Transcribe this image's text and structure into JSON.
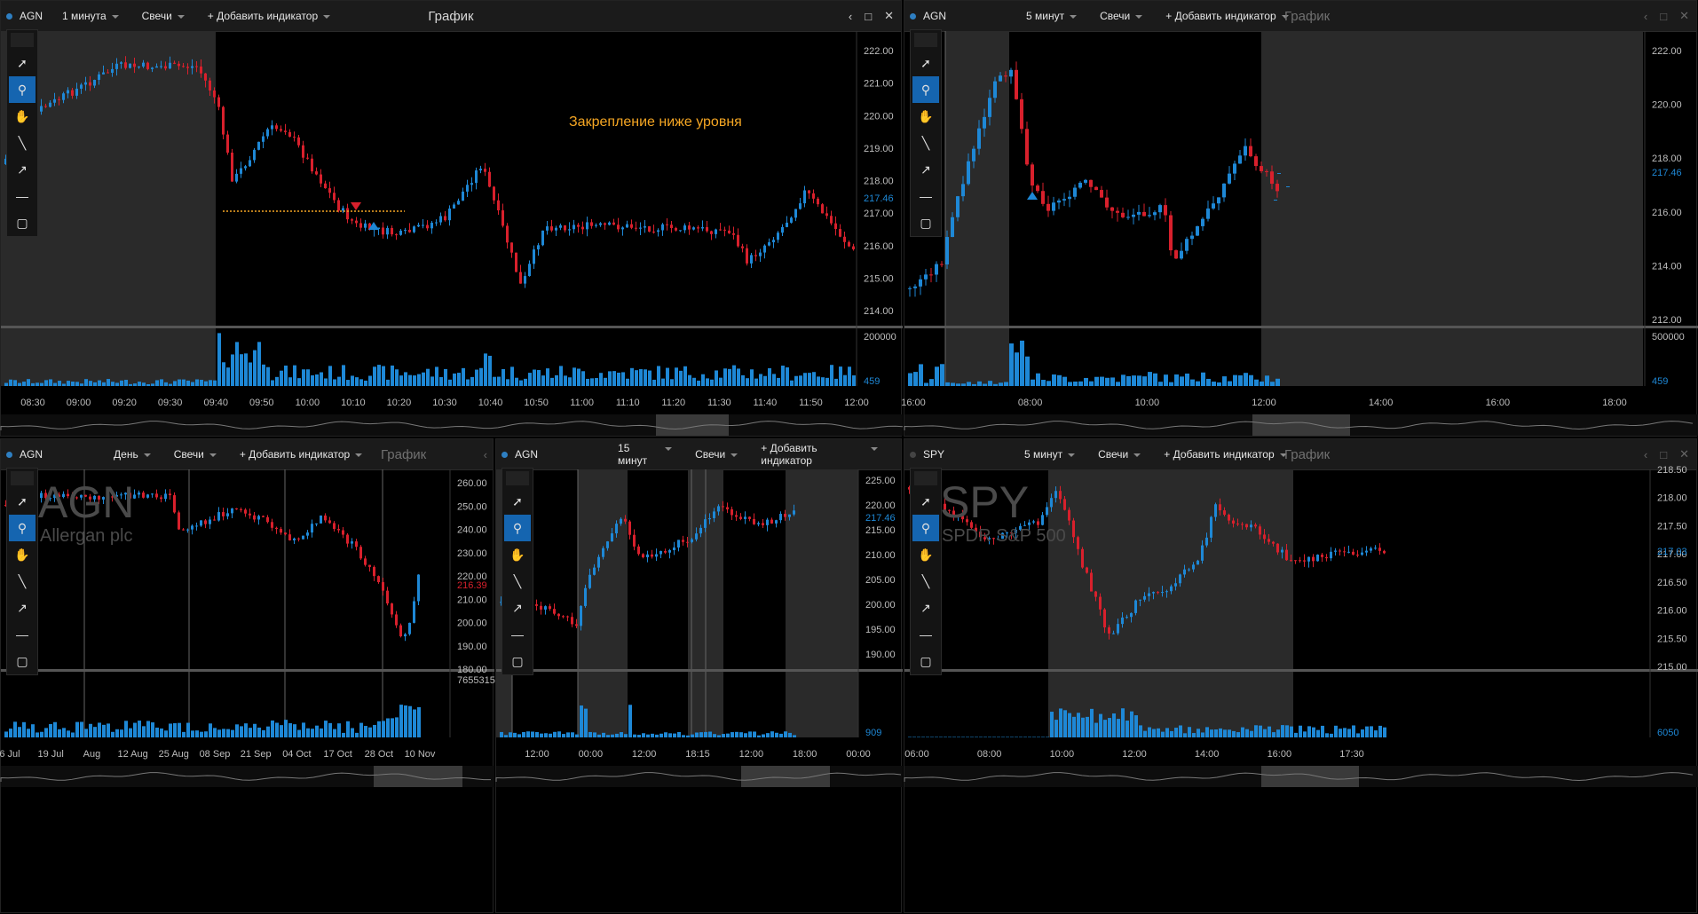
{
  "panels": [
    {
      "id": "p1",
      "symbol": "AGN",
      "interval": "1 минута",
      "chart_type": "Свечи",
      "add_indicator": "+ Добавить индикатор",
      "title": "График",
      "title_dim": false,
      "price_ticks": [
        "222.00",
        "221.00",
        "220.00",
        "219.00",
        "218.00",
        "217.00",
        "216.00",
        "215.00",
        "214.00"
      ],
      "current_price": "217.46",
      "vol_max": "200000",
      "vol_min": "459",
      "time_ticks": [
        "08:30",
        "09:00",
        "09:20",
        "09:30",
        "09:40",
        "09:50",
        "10:00",
        "10:10",
        "10:20",
        "10:30",
        "10:40",
        "10:50",
        "11:00",
        "11:10",
        "11:20",
        "11:30",
        "11:40",
        "11:50",
        "12:00"
      ],
      "annotation": "Закрепление ниже уровня"
    },
    {
      "id": "p2",
      "symbol": "AGN",
      "interval": "5 минут",
      "chart_type": "Свечи",
      "add_indicator": "+ Добавить индикатор",
      "title": "График",
      "title_dim": true,
      "price_ticks": [
        "222.00",
        "220.00",
        "218.00",
        "216.00",
        "214.00",
        "212.00"
      ],
      "current_price": "217.46",
      "vol_max": "500000",
      "vol_min": "459",
      "time_ticks": [
        "16:00",
        "08:00",
        "10:00",
        "12:00",
        "14:00",
        "16:00",
        "18:00"
      ]
    },
    {
      "id": "p3",
      "symbol": "AGN",
      "interval": "День",
      "chart_type": "Свечи",
      "add_indicator": "+ Добавить индикатор",
      "title": "График",
      "title_dim": true,
      "price_ticks": [
        "260.00",
        "250.00",
        "240.00",
        "230.00",
        "220.00",
        "210.00",
        "200.00",
        "190.00",
        "180.00"
      ],
      "current_price": "216.39",
      "vol_max": "7655315",
      "vol_min": "",
      "time_ticks": [
        "6 Jul",
        "19 Jul",
        "Aug",
        "12 Aug",
        "25 Aug",
        "08 Sep",
        "21 Sep",
        "04 Oct",
        "17 Oct",
        "28 Oct",
        "10 Nov"
      ],
      "watermark_symbol": "AGN",
      "watermark_name": "Allergan plc"
    },
    {
      "id": "p4",
      "symbol": "AGN",
      "interval": "15 минут",
      "chart_type": "Свечи",
      "add_indicator": "+ Добавить индикатор",
      "title": "",
      "title_dim": true,
      "price_ticks": [
        "225.00",
        "220.00",
        "215.00",
        "210.00",
        "205.00",
        "200.00",
        "195.00",
        "190.00"
      ],
      "current_price": "217.46",
      "vol_max": "",
      "vol_min": "909",
      "time_ticks": [
        "12:00",
        "00:00",
        "12:00",
        "18:15",
        "12:00",
        "18:00",
        "00:00"
      ]
    },
    {
      "id": "p5",
      "symbol": "SPY",
      "interval": "5 минут",
      "chart_type": "Свечи",
      "add_indicator": "+ Добавить индикатор",
      "title": "График",
      "title_dim": true,
      "price_ticks": [
        "218.50",
        "218.00",
        "217.50",
        "217.00",
        "216.50",
        "216.00",
        "215.50",
        "215.00"
      ],
      "current_price": "217.03",
      "vol_max": "",
      "vol_min": "6050",
      "time_ticks": [
        "06:00",
        "08:00",
        "10:00",
        "12:00",
        "14:00",
        "16:00",
        "17:30"
      ],
      "watermark_symbol": "SPY",
      "watermark_name": "SPDR S&P 500"
    }
  ],
  "colors": {
    "up": "#1e88d6",
    "down": "#d8202c",
    "accent": "#1565b0",
    "annotation": "#f5a623",
    "grid": "#0a0a0a",
    "session_shade": "#2a2a2a"
  },
  "toolbar_icons": [
    "cursor-icon",
    "zoom-icon",
    "hand-icon",
    "line-icon",
    "arrow-icon",
    "hline-icon",
    "rect-icon"
  ]
}
